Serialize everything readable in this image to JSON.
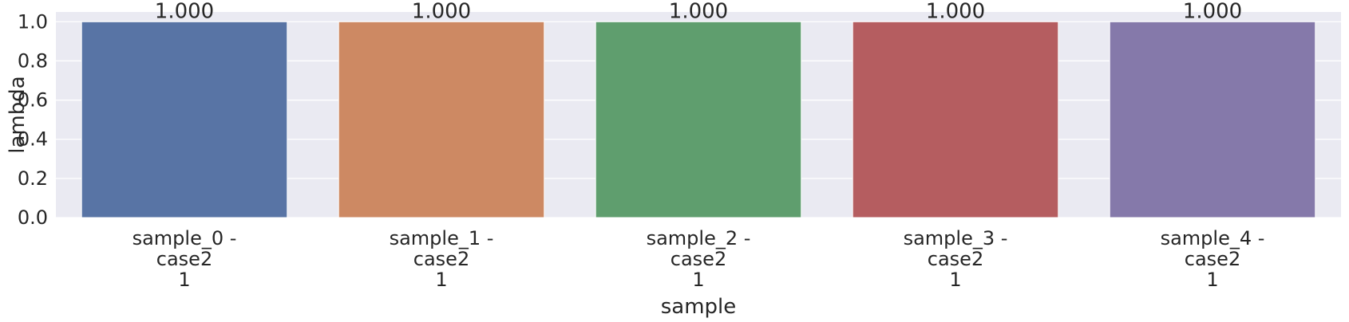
{
  "chart_data": {
    "type": "bar",
    "title": "",
    "xlabel": "sample",
    "ylabel": "lambda",
    "categories": [
      [
        "sample_0 -",
        "case2",
        "1"
      ],
      [
        "sample_1 -",
        "case2",
        "1"
      ],
      [
        "sample_2 -",
        "case2",
        "1"
      ],
      [
        "sample_3 -",
        "case2",
        "1"
      ],
      [
        "sample_4 -",
        "case2",
        "1"
      ]
    ],
    "values": [
      1.0,
      1.0,
      1.0,
      1.0,
      1.0
    ],
    "data_labels": [
      "1.000",
      "1.000",
      "1.000",
      "1.000",
      "1.000"
    ],
    "ylim": [
      0,
      1.05
    ],
    "yticks": [
      0.0,
      0.2,
      0.4,
      0.6,
      0.8,
      1.0
    ],
    "ytick_labels": [
      "0.0",
      "0.2",
      "0.4",
      "0.6",
      "0.8",
      "1.0"
    ],
    "grid": true,
    "colors": {
      "background": "#eaeaf2",
      "grid": "#ffffff",
      "bars": [
        "#5874a5",
        "#cd8963",
        "#5f9e6e",
        "#b55d60",
        "#8579aa"
      ]
    }
  }
}
